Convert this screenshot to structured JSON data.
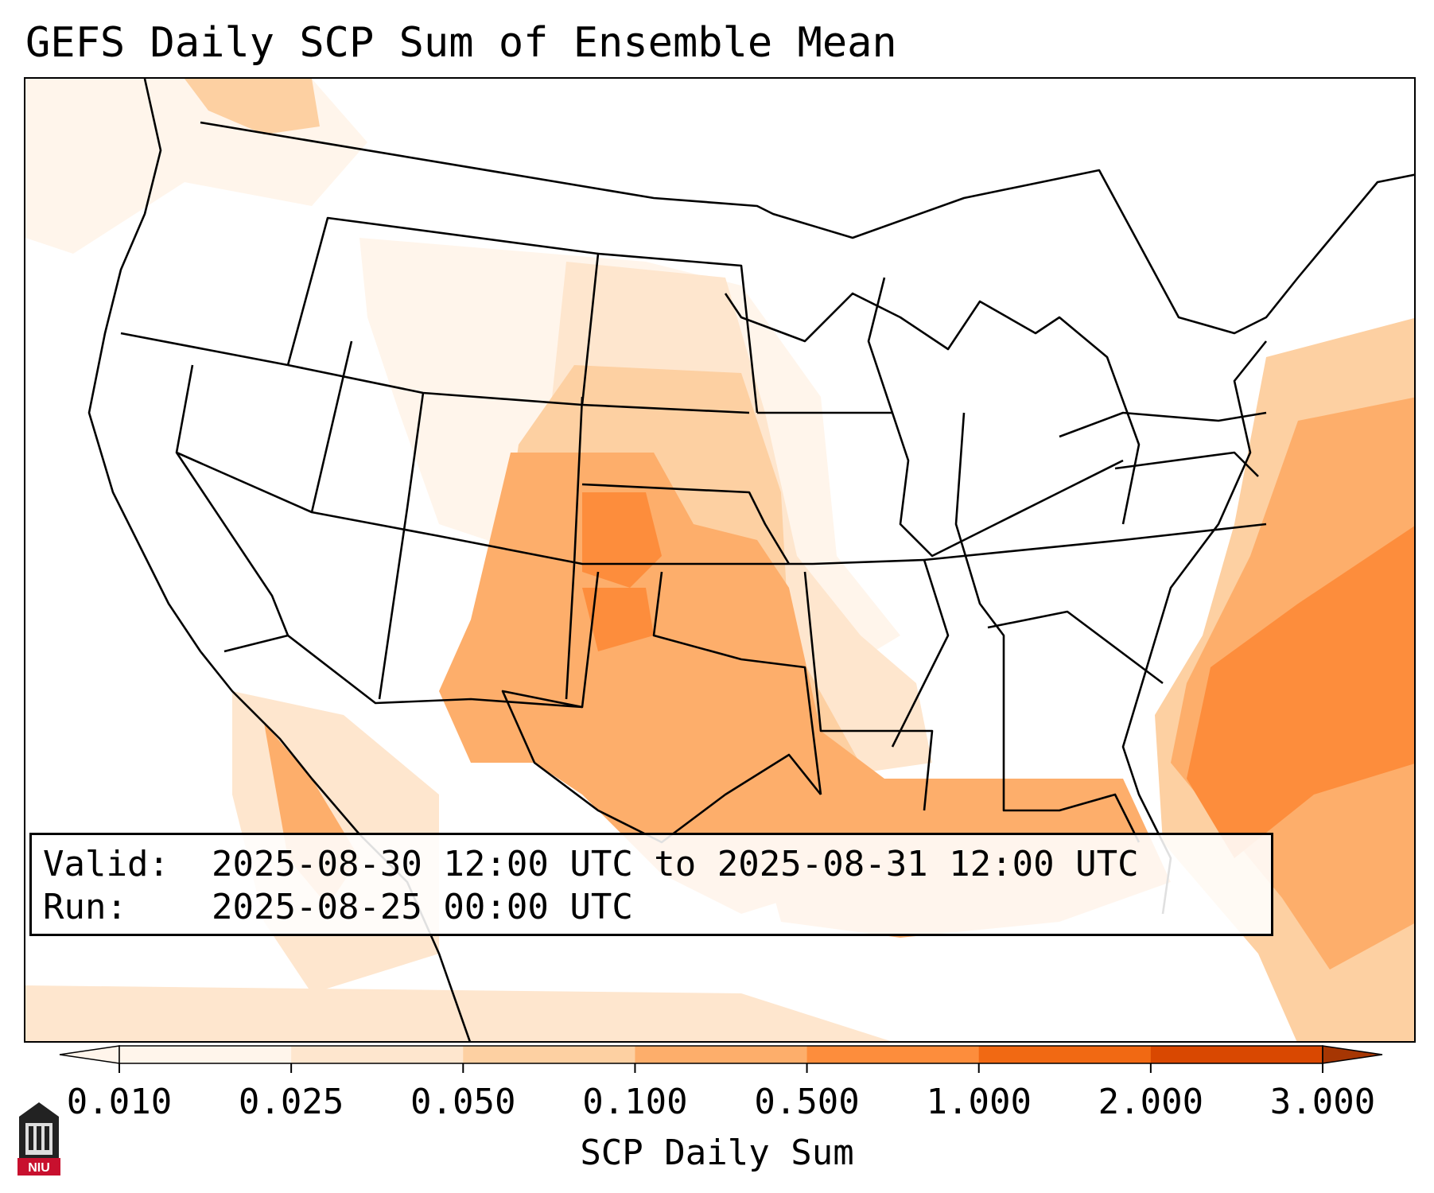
{
  "header": {
    "title": "GEFS Daily SCP Sum of Ensemble Mean"
  },
  "info": {
    "valid_label": "Valid:",
    "valid_value": "2025-08-30 12:00 UTC to 2025-08-31 12:00 UTC",
    "run_label": "Run:",
    "run_value": "2025-08-25 00:00 UTC"
  },
  "colorbar": {
    "label": "SCP Daily Sum",
    "ticks": [
      "0.010",
      "0.025",
      "0.050",
      "0.100",
      "0.500",
      "1.000",
      "2.000",
      "3.000"
    ],
    "colors": [
      "#fff5eb",
      "#fee6ce",
      "#fdd0a2",
      "#fdae6b",
      "#fd8d3c",
      "#f16913",
      "#d94801",
      "#a63603"
    ],
    "extend": "both"
  },
  "logo": {
    "text": "NIU",
    "color": "#c8102e"
  }
}
